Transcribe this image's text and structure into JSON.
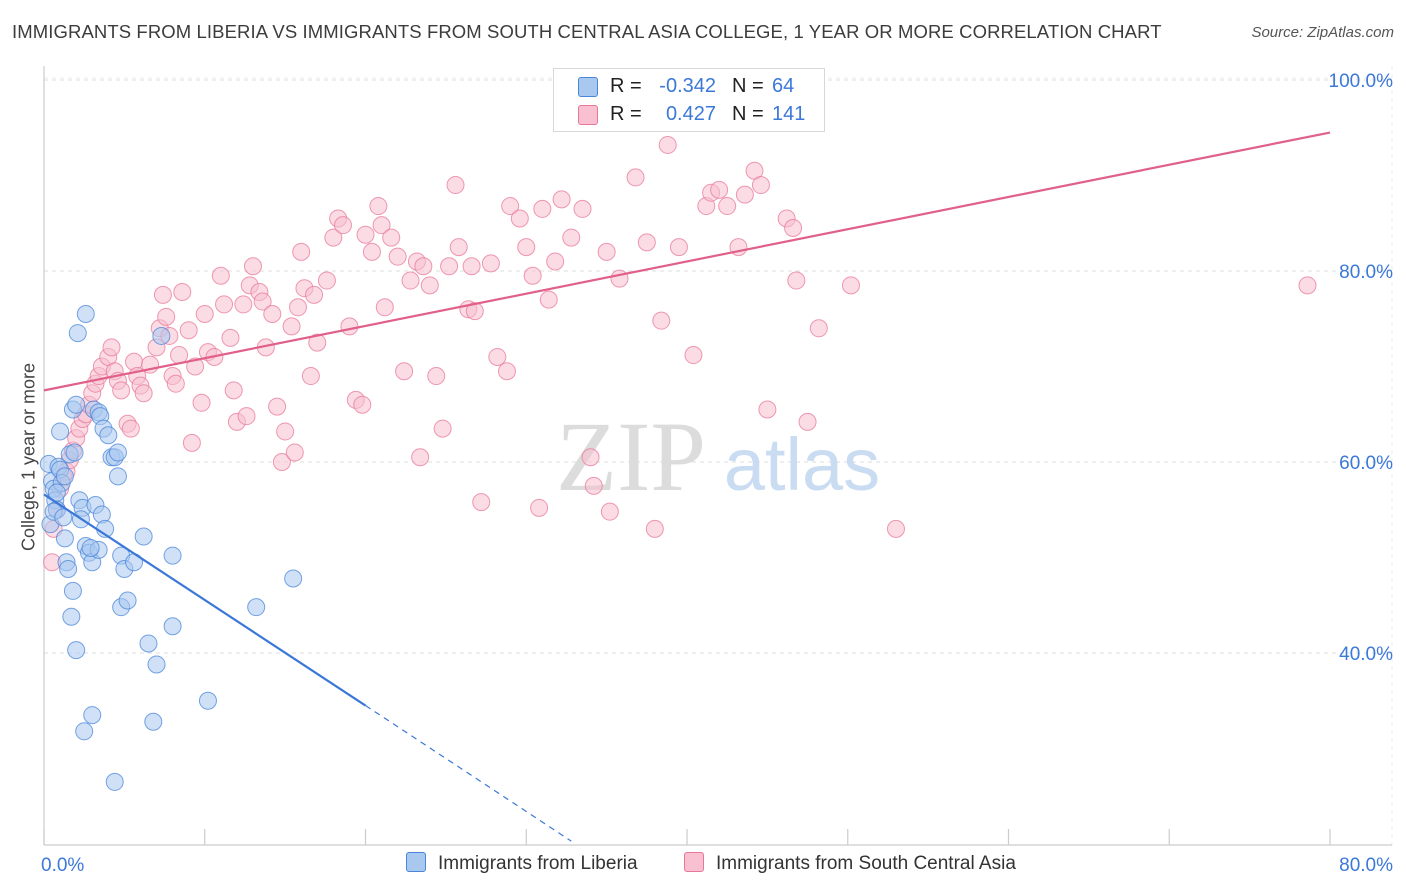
{
  "title": "IMMIGRANTS FROM LIBERIA VS IMMIGRANTS FROM SOUTH CENTRAL ASIA COLLEGE, 1 YEAR OR MORE CORRELATION CHART",
  "source": "Source: ZipAtlas.com",
  "watermark": {
    "zip": "ZIP",
    "atlas": "atlas"
  },
  "stats": [
    {
      "r_label": "R =",
      "r_value": "-0.342",
      "n_label": "N =",
      "n_value": "64",
      "color": "#a9c8f0",
      "stroke": "#4a86d8"
    },
    {
      "r_label": "R =",
      "r_value": "0.427",
      "n_label": "N =",
      "n_value": "141",
      "color": "#f8c0d0",
      "stroke": "#e8789a"
    }
  ],
  "chart_data": {
    "type": "scatter",
    "title": "IMMIGRANTS FROM LIBERIA VS IMMIGRANTS FROM SOUTH CENTRAL ASIA COLLEGE, 1 YEAR OR MORE CORRELATION CHART",
    "xlabel": "",
    "ylabel": "College, 1 year or more",
    "xlim": [
      0,
      80
    ],
    "ylim": [
      20,
      102
    ],
    "x_ticks": [
      0,
      80
    ],
    "x_tick_labels": [
      "0.0%",
      "80.0%"
    ],
    "y_ticks": [
      40,
      60,
      80,
      100
    ],
    "y_tick_labels": [
      "40.0%",
      "60.0%",
      "80.0%",
      "100.0%"
    ],
    "grid": true,
    "legend_position": "bottom",
    "series": [
      {
        "name": "Immigrants from Liberia",
        "color": "#a9c8f0",
        "stroke": "#4a86d8",
        "trend": {
          "x": [
            0,
            20
          ],
          "y": [
            56.6,
            34.5
          ],
          "dashed_to": [
            32.8,
            20.3
          ],
          "color": "#3a78d8"
        },
        "points": [
          [
            0.3,
            59.8
          ],
          [
            0.5,
            58.0
          ],
          [
            0.6,
            57.2
          ],
          [
            0.7,
            56.0
          ],
          [
            0.8,
            55.0
          ],
          [
            0.9,
            59.5
          ],
          [
            1.0,
            59.2
          ],
          [
            1.1,
            57.8
          ],
          [
            0.4,
            53.5
          ],
          [
            0.6,
            54.8
          ],
          [
            1.2,
            54.2
          ],
          [
            1.3,
            52.0
          ],
          [
            1.4,
            49.5
          ],
          [
            1.5,
            48.8
          ],
          [
            1.3,
            58.5
          ],
          [
            1.6,
            60.8
          ],
          [
            1.8,
            65.5
          ],
          [
            2.0,
            66.0
          ],
          [
            2.2,
            56.0
          ],
          [
            2.4,
            55.2
          ],
          [
            2.6,
            51.2
          ],
          [
            2.8,
            50.5
          ],
          [
            3.0,
            49.5
          ],
          [
            3.2,
            55.5
          ],
          [
            3.4,
            50.8
          ],
          [
            3.6,
            54.5
          ],
          [
            3.8,
            53.0
          ],
          [
            2.1,
            73.5
          ],
          [
            2.6,
            75.5
          ],
          [
            3.1,
            65.5
          ],
          [
            3.4,
            65.2
          ],
          [
            3.5,
            64.8
          ],
          [
            3.7,
            63.5
          ],
          [
            4.0,
            62.8
          ],
          [
            4.2,
            60.5
          ],
          [
            4.4,
            60.5
          ],
          [
            4.6,
            58.5
          ],
          [
            4.8,
            50.2
          ],
          [
            5.0,
            48.8
          ],
          [
            1.8,
            46.5
          ],
          [
            1.7,
            43.8
          ],
          [
            2.0,
            40.3
          ],
          [
            2.5,
            31.8
          ],
          [
            3.0,
            33.5
          ],
          [
            4.4,
            26.5
          ],
          [
            4.8,
            44.8
          ],
          [
            5.2,
            45.5
          ],
          [
            5.6,
            49.5
          ],
          [
            6.2,
            52.2
          ],
          [
            6.5,
            41.0
          ],
          [
            6.8,
            32.8
          ],
          [
            7.0,
            38.8
          ],
          [
            8.0,
            50.2
          ],
          [
            8.0,
            42.8
          ],
          [
            10.2,
            35.0
          ],
          [
            13.2,
            44.8
          ],
          [
            15.5,
            47.8
          ],
          [
            7.3,
            73.2
          ],
          [
            1.9,
            61.0
          ],
          [
            2.3,
            54.0
          ],
          [
            1.0,
            63.2
          ],
          [
            4.6,
            61.0
          ],
          [
            2.9,
            51.0
          ],
          [
            0.8,
            56.8
          ]
        ]
      },
      {
        "name": "Immigrants from South Central Asia",
        "color": "#f8c0d0",
        "stroke": "#e8789a",
        "trend": {
          "x": [
            0,
            80
          ],
          "y": [
            67.5,
            94.5
          ],
          "color": "#e0608a"
        },
        "points": [
          [
            0.5,
            49.5
          ],
          [
            0.6,
            53.0
          ],
          [
            0.8,
            55.0
          ],
          [
            1.0,
            57.2
          ],
          [
            1.2,
            58.5
          ],
          [
            1.4,
            59.0
          ],
          [
            1.6,
            60.2
          ],
          [
            1.8,
            61.2
          ],
          [
            2.0,
            62.5
          ],
          [
            2.2,
            63.5
          ],
          [
            2.4,
            64.5
          ],
          [
            2.6,
            65.0
          ],
          [
            2.8,
            66.0
          ],
          [
            3.0,
            67.2
          ],
          [
            3.2,
            68.2
          ],
          [
            3.4,
            69.0
          ],
          [
            3.6,
            70.0
          ],
          [
            4.0,
            71.0
          ],
          [
            4.2,
            72.0
          ],
          [
            4.4,
            69.5
          ],
          [
            4.6,
            68.5
          ],
          [
            4.8,
            67.5
          ],
          [
            5.2,
            64.0
          ],
          [
            5.4,
            63.5
          ],
          [
            5.6,
            70.5
          ],
          [
            5.8,
            69.0
          ],
          [
            6.0,
            68.0
          ],
          [
            6.2,
            67.2
          ],
          [
            6.6,
            70.2
          ],
          [
            7.0,
            72.0
          ],
          [
            7.2,
            74.0
          ],
          [
            7.4,
            77.5
          ],
          [
            7.6,
            75.2
          ],
          [
            7.8,
            73.2
          ],
          [
            8.0,
            69.0
          ],
          [
            8.2,
            68.2
          ],
          [
            8.4,
            71.2
          ],
          [
            8.6,
            77.8
          ],
          [
            9.0,
            73.8
          ],
          [
            9.4,
            70.0
          ],
          [
            9.8,
            66.2
          ],
          [
            10.0,
            75.5
          ],
          [
            10.2,
            71.5
          ],
          [
            10.6,
            71.0
          ],
          [
            11.0,
            79.5
          ],
          [
            11.2,
            76.5
          ],
          [
            11.6,
            73.0
          ],
          [
            11.8,
            67.5
          ],
          [
            12.0,
            64.2
          ],
          [
            12.4,
            76.5
          ],
          [
            12.6,
            64.8
          ],
          [
            12.8,
            78.5
          ],
          [
            13.0,
            80.5
          ],
          [
            13.4,
            77.8
          ],
          [
            13.6,
            76.8
          ],
          [
            13.8,
            72.0
          ],
          [
            14.2,
            75.5
          ],
          [
            14.5,
            65.8
          ],
          [
            14.8,
            60.0
          ],
          [
            15.0,
            63.2
          ],
          [
            15.4,
            74.2
          ],
          [
            15.6,
            61.0
          ],
          [
            16.0,
            82.0
          ],
          [
            16.2,
            78.2
          ],
          [
            16.6,
            69.0
          ],
          [
            16.8,
            77.5
          ],
          [
            17.0,
            72.5
          ],
          [
            17.6,
            79.0
          ],
          [
            18.0,
            83.5
          ],
          [
            18.3,
            85.5
          ],
          [
            18.6,
            84.8
          ],
          [
            19.0,
            74.2
          ],
          [
            19.4,
            66.5
          ],
          [
            19.8,
            66.0
          ],
          [
            20.0,
            83.8
          ],
          [
            20.4,
            82.0
          ],
          [
            20.8,
            86.8
          ],
          [
            21.0,
            84.8
          ],
          [
            21.2,
            76.2
          ],
          [
            21.6,
            83.5
          ],
          [
            22.0,
            81.5
          ],
          [
            22.4,
            69.5
          ],
          [
            22.8,
            79.0
          ],
          [
            23.2,
            81.0
          ],
          [
            23.6,
            80.5
          ],
          [
            24.0,
            78.5
          ],
          [
            24.4,
            69.0
          ],
          [
            24.8,
            63.5
          ],
          [
            25.2,
            80.5
          ],
          [
            25.6,
            89.0
          ],
          [
            25.8,
            82.5
          ],
          [
            26.4,
            76.0
          ],
          [
            26.8,
            75.8
          ],
          [
            27.2,
            55.8
          ],
          [
            27.8,
            80.8
          ],
          [
            28.2,
            71.0
          ],
          [
            28.8,
            69.5
          ],
          [
            29.0,
            86.8
          ],
          [
            29.6,
            85.5
          ],
          [
            30.0,
            82.5
          ],
          [
            30.4,
            79.5
          ],
          [
            30.8,
            55.2
          ],
          [
            31.0,
            86.5
          ],
          [
            31.4,
            77.0
          ],
          [
            31.8,
            81.0
          ],
          [
            32.2,
            87.5
          ],
          [
            32.8,
            83.5
          ],
          [
            33.5,
            86.5
          ],
          [
            34.0,
            60.5
          ],
          [
            34.2,
            57.5
          ],
          [
            35.0,
            82.0
          ],
          [
            35.2,
            54.8
          ],
          [
            35.8,
            79.2
          ],
          [
            36.8,
            89.8
          ],
          [
            37.5,
            83.0
          ],
          [
            38.0,
            53.0
          ],
          [
            38.8,
            93.2
          ],
          [
            39.5,
            82.5
          ],
          [
            40.4,
            71.2
          ],
          [
            41.2,
            86.8
          ],
          [
            41.5,
            88.2
          ],
          [
            42.0,
            88.5
          ],
          [
            42.5,
            86.8
          ],
          [
            43.2,
            82.5
          ],
          [
            43.6,
            88.0
          ],
          [
            44.2,
            90.5
          ],
          [
            44.6,
            89.0
          ],
          [
            45.0,
            65.5
          ],
          [
            46.2,
            85.5
          ],
          [
            46.6,
            84.5
          ],
          [
            46.8,
            79.0
          ],
          [
            47.5,
            64.2
          ],
          [
            48.2,
            74.0
          ],
          [
            50.2,
            78.5
          ],
          [
            53.0,
            53.0
          ],
          [
            78.6,
            78.5
          ],
          [
            38.4,
            74.8
          ],
          [
            26.6,
            80.5
          ],
          [
            23.4,
            60.5
          ],
          [
            15.8,
            76.2
          ],
          [
            9.2,
            62.0
          ]
        ]
      }
    ]
  }
}
